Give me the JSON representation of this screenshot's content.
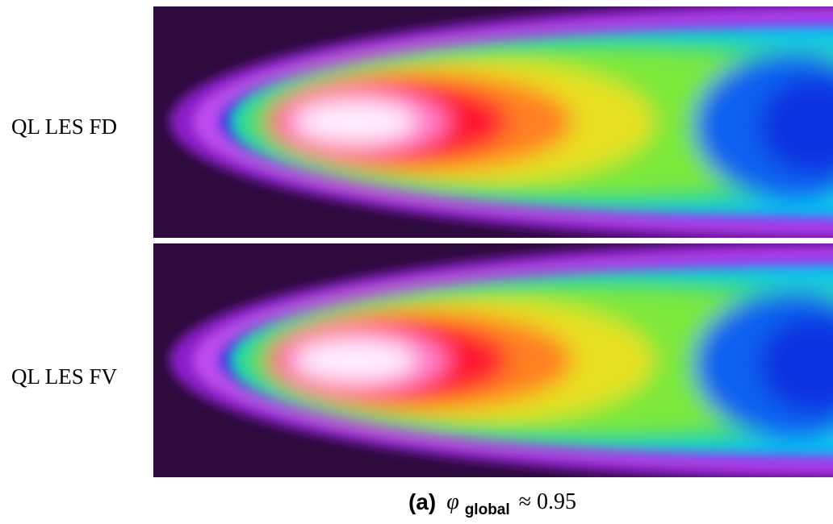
{
  "figure": {
    "panels": [
      {
        "label": "QL LES FD"
      },
      {
        "label": "QL LES FV"
      }
    ],
    "caption": {
      "label": "(a)",
      "symbol": "φ",
      "subscript": "global",
      "relation": "≈ 0.95"
    }
  }
}
